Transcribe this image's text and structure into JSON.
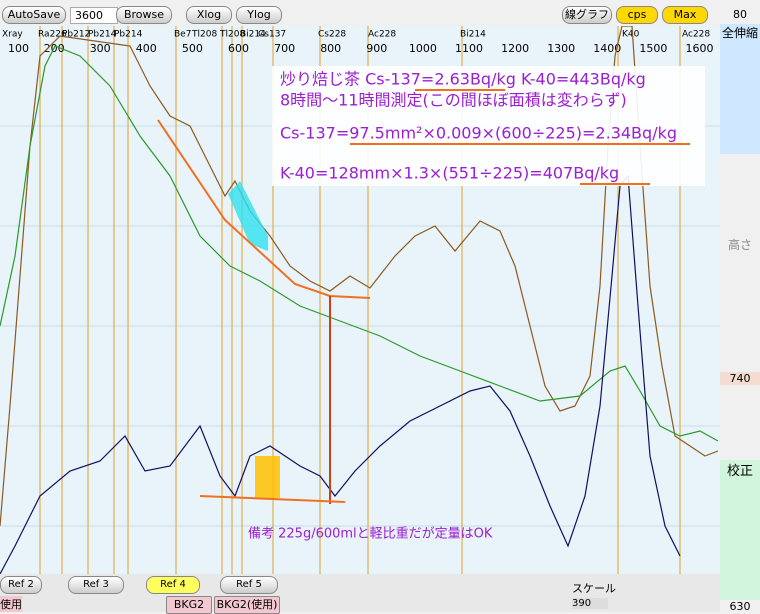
{
  "toolbar": {
    "autosave": "AutoSave",
    "time": "3600",
    "browse": "Browse",
    "xlog": "Xlog",
    "ylog": "Ylog",
    "line_graph": "線グラフ",
    "cps": "cps",
    "max": "Max",
    "top_value": "80"
  },
  "axis": {
    "x_labels": [
      "100",
      "200",
      "300",
      "400",
      "500",
      "600",
      "700",
      "800",
      "900",
      "1000",
      "1100",
      "1200",
      "1300",
      "1400",
      "1500",
      "1600"
    ],
    "peaks": [
      "Xray",
      "Ra226",
      "Pb212",
      "Pb214",
      "Pb214",
      "Be7",
      "Tl208",
      "Tl208",
      "Bi214",
      "Cs137",
      "Cs228",
      "Ac228",
      "Bi214",
      "K40",
      "Ac228"
    ]
  },
  "annotations": [
    "炒り焙じ茶  Cs-137=2.63Bq/kg  K-40=443Bq/kg",
    "8時間～11時間測定(この間ほぼ面積は変わらず)",
    "Cs-137=97.5mm²×0.009×(600÷225)=2.34Bq/kg",
    "K-40=128mm×1.3×(551÷225)=407Bq/kg",
    "備考  225g/600mlと軽比重だが定量はOK"
  ],
  "side_panel": {
    "zoom_all": "全伸縮",
    "height": "高さ",
    "height_value": "740",
    "calibrate": "校正",
    "calibrate_value": "630"
  },
  "bottom_bar": {
    "refs": [
      "Ref 2",
      "Ref 3",
      "Ref 4",
      "Ref 5"
    ],
    "use": "使用",
    "bkg2": "BKG2",
    "bkg2_use": "BKG2(使用)",
    "scale": "スケール",
    "scale_value": "390"
  }
}
